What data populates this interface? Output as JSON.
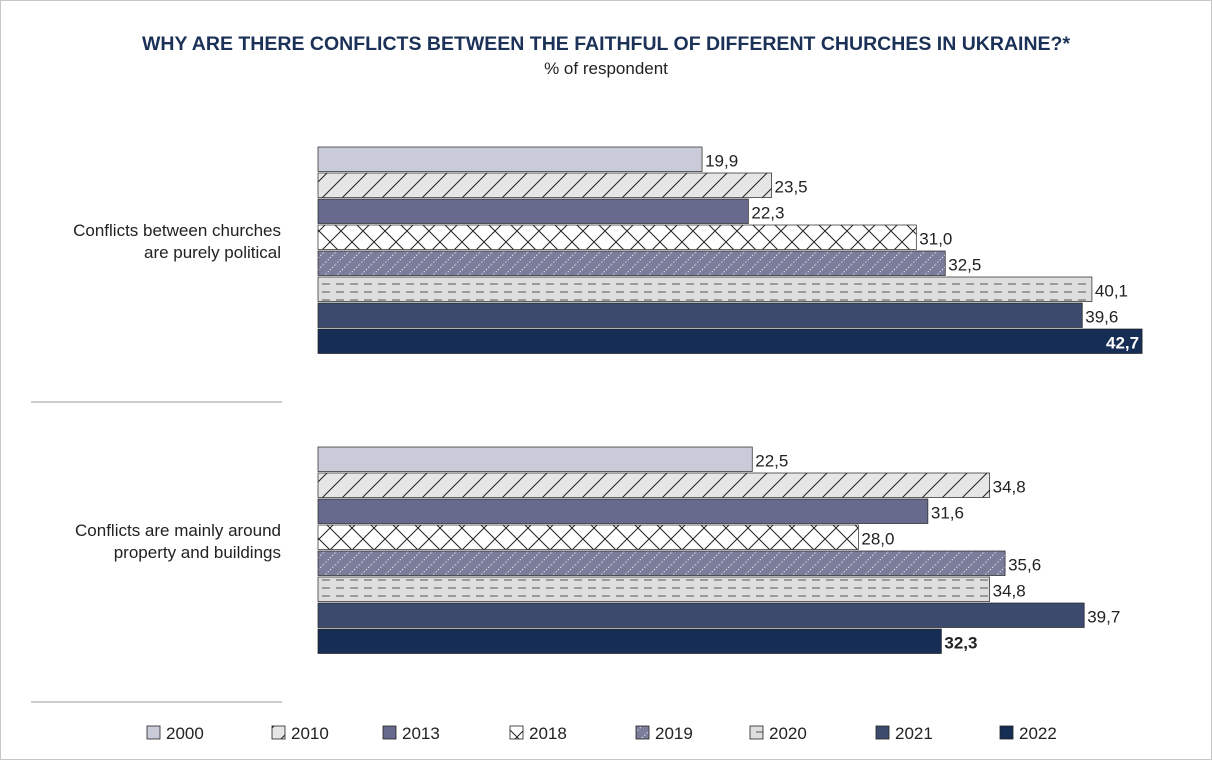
{
  "chart_data": {
    "type": "bar",
    "orientation": "horizontal",
    "title": "WHY ARE THERE CONFLICTS BETWEEN THE FAITHFUL OF DIFFERENT CHURCHES IN UKRAINE?*",
    "subtitle": "% of respondent",
    "xlim": [
      0,
      45
    ],
    "grid": false,
    "legend_position": "bottom",
    "categories": [
      [
        "Conflicts between churches",
        "are purely political"
      ],
      [
        "Conflicts are mainly around",
        "property and buildings"
      ]
    ],
    "series": [
      {
        "name": "2000",
        "values": [
          19.9,
          22.5
        ],
        "labels": [
          "19,9",
          "22,5"
        ],
        "color": "#c9cbd8",
        "pattern": "solid"
      },
      {
        "name": "2010",
        "values": [
          23.5,
          34.8
        ],
        "labels": [
          "23,5",
          "34,8"
        ],
        "color": "#e6e6e6",
        "pattern": "diagonal"
      },
      {
        "name": "2013",
        "values": [
          22.3,
          31.6
        ],
        "labels": [
          "22,3",
          "31,6"
        ],
        "color": "#676a8c",
        "pattern": "solid"
      },
      {
        "name": "2018",
        "values": [
          31.0,
          28.0
        ],
        "labels": [
          "31,0",
          "28,0"
        ],
        "color": "#ffffff",
        "pattern": "crosshatch"
      },
      {
        "name": "2019",
        "values": [
          32.5,
          35.6
        ],
        "labels": [
          "32,5",
          "35,6"
        ],
        "color": "#7b7d9b",
        "pattern": "dotted-diagonal"
      },
      {
        "name": "2020",
        "values": [
          40.1,
          34.8
        ],
        "labels": [
          "40,1",
          "34,8"
        ],
        "color": "#dedede",
        "pattern": "dashed-horizontal"
      },
      {
        "name": "2021",
        "values": [
          39.6,
          39.7
        ],
        "labels": [
          "39,6",
          "39,7"
        ],
        "color": "#3c4a6e",
        "pattern": "solid"
      },
      {
        "name": "2022",
        "values": [
          42.7,
          32.3
        ],
        "labels": [
          "42,7",
          "32,3"
        ],
        "color": "#162d55",
        "pattern": "solid",
        "emphasis": true
      }
    ]
  }
}
